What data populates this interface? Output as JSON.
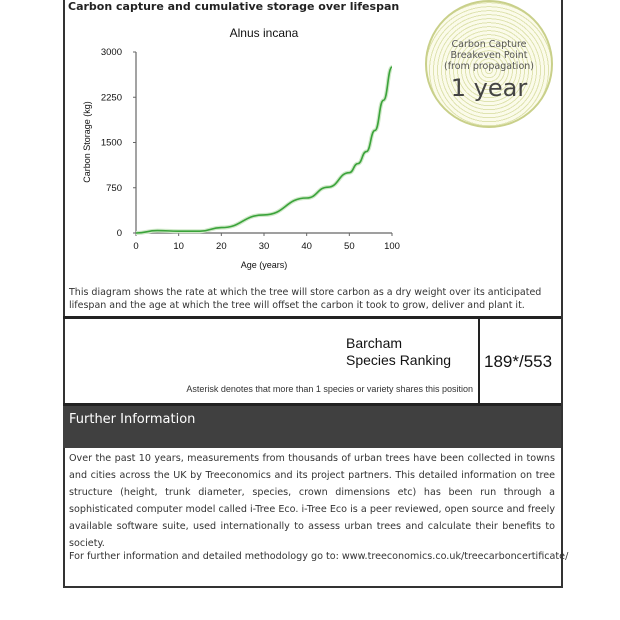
{
  "heading": "Carbon capture and cumulative storage over lifespan",
  "chart_data": {
    "type": "line",
    "title": "Alnus incana",
    "xlabel": "Age (years)",
    "ylabel": "Carbon Storage (kg)",
    "x_ticks": [
      0,
      10,
      20,
      30,
      40,
      50,
      100
    ],
    "y_ticks": [
      0,
      750,
      1500,
      2250,
      3000
    ],
    "ylim": [
      0,
      3000
    ],
    "grid": false,
    "line_color": "#3aa33a",
    "x": [
      0,
      5,
      10,
      15,
      20,
      30,
      40,
      45,
      50,
      60,
      70,
      80,
      90,
      100
    ],
    "y": [
      0,
      40,
      30,
      30,
      90,
      300,
      580,
      760,
      1000,
      1150,
      1350,
      1700,
      2200,
      2750
    ]
  },
  "badge": {
    "line1": "Carbon Capture",
    "line2": "Breakeven Point",
    "line3": "(from propagation)",
    "value": "1 year"
  },
  "description": "This diagram shows the rate at which the tree will store carbon as a dry weight over its anticipated lifespan and the age at which the tree will offset the carbon it took to grow, deliver and plant it.",
  "ranking": {
    "label1": "Barcham",
    "label2": "Species Ranking",
    "value": "189*/553",
    "note": "Asterisk denotes that more than 1 species or variety shares this position"
  },
  "further": {
    "title": "Further Information",
    "body": "Over the past 10 years, measurements from thousands of urban trees have been collected in towns and cities across the UK by Treeconomics and its project partners. This detailed information on tree structure (height, trunk diameter, species, crown dimensions etc) has been run through a sophisticated computer model called i-Tree Eco. i-Tree Eco is a peer reviewed, open source and freely available software suite, used internationally to assess urban trees and calculate their benefits to society.",
    "link": "For further information and detailed methodology go to: www.treeconomics.co.uk/treecarboncertificate/"
  }
}
